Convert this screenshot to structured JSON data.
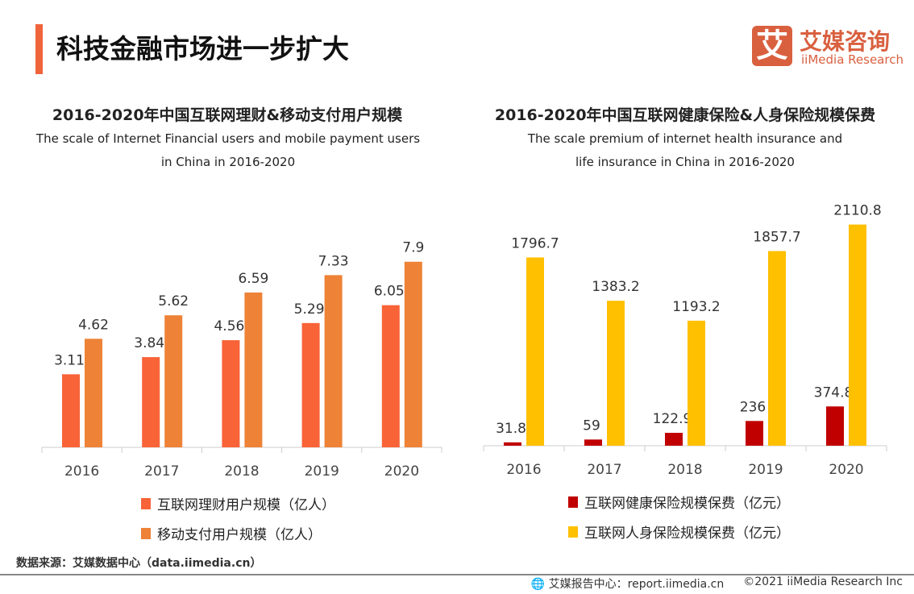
{
  "header": {
    "title": "科技金融市场进一步扩大",
    "logo_cn": "艾媒咨询",
    "logo_en": "iiMedia Research",
    "logo_mark": "艾",
    "accent": "#F0643C"
  },
  "chart_data": [
    {
      "type": "bar",
      "title": "2016-2020年中国互联网理财&移动支付用户规模",
      "subtitle_lines": [
        "The scale of Internet Financial users and mobile payment users",
        "in China in 2016-2020"
      ],
      "categories": [
        "2016",
        "2017",
        "2018",
        "2019",
        "2020"
      ],
      "ylim": [
        0,
        8.2
      ],
      "grid": false,
      "legend": "bottom",
      "series": [
        {
          "name": "互联网理财用户规模（亿人）",
          "color": "#F86338",
          "values": [
            3.11,
            3.84,
            4.56,
            5.29,
            6.05
          ]
        },
        {
          "name": "移动支付用户规模（亿人）",
          "color": "#EE8236",
          "values": [
            4.62,
            5.62,
            6.59,
            7.33,
            7.9
          ]
        }
      ]
    },
    {
      "type": "bar",
      "title": "2016-2020年中国互联网健康保险&人身保险规模保费",
      "subtitle_lines": [
        "The scale premium of internet health insurance and",
        "life insurance  in China in 2016-2020"
      ],
      "categories": [
        "2016",
        "2017",
        "2018",
        "2019",
        "2020"
      ],
      "ylim": [
        0,
        2200
      ],
      "grid": false,
      "legend": "bottom",
      "series": [
        {
          "name": "互联网健康保险规模保费（亿元）",
          "color": "#C00000",
          "values": [
            31.8,
            59,
            122.9,
            236,
            374.8
          ]
        },
        {
          "name": "互联网人身保险规模保费（亿元）",
          "color": "#FFC000",
          "values": [
            1796.7,
            1383.2,
            1193.2,
            1857.7,
            2110.8
          ]
        }
      ]
    }
  ],
  "source": "数据来源：艾媒数据中心（data.iimedia.cn）",
  "footer": {
    "report": "艾媒报告中心：report.iimedia.cn",
    "copyright": "©2021  iiMedia Research  Inc",
    "icon": "globe-cursor-icon"
  }
}
